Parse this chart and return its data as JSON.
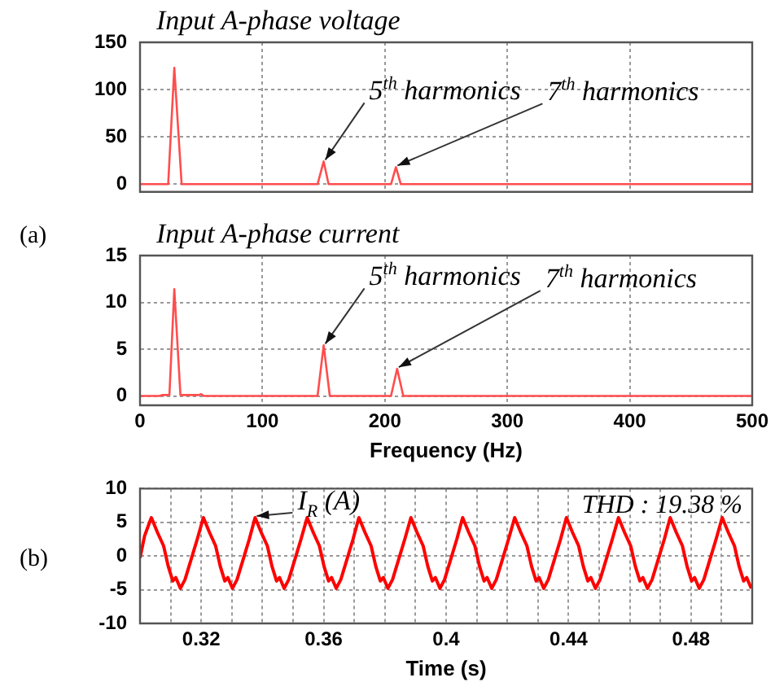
{
  "chart_data": [
    {
      "type": "line",
      "title": "Input A-phase voltage",
      "xlim": [
        0,
        500
      ],
      "xticks": [
        0,
        100,
        200,
        300,
        400,
        500
      ],
      "ylim": [
        -8,
        150
      ],
      "yticks": [
        0,
        50,
        100,
        150
      ],
      "tick_labels": "y",
      "grid": true,
      "series": [
        {
          "color": "#ff4d4d",
          "x": [
            0,
            23,
            28,
            34,
            145,
            150,
            154,
            205,
            209,
            213,
            500
          ],
          "values": [
            0,
            0,
            123,
            0,
            0,
            24,
            0,
            0,
            18,
            0,
            0
          ]
        }
      ],
      "annotations": [
        {
          "text": "5$^{th}$ harmonics",
          "x": 150,
          "y": 24
        },
        {
          "text": "7$^{th}$ harmonics",
          "x": 209,
          "y": 18
        }
      ]
    },
    {
      "type": "line",
      "title": "Input A-phase current",
      "xlabel": "Frequency (Hz)",
      "xlim": [
        0,
        500
      ],
      "xticks": [
        0,
        100,
        200,
        300,
        400,
        500
      ],
      "ylim": [
        -1,
        15
      ],
      "yticks": [
        0,
        5,
        10,
        15
      ],
      "grid": true,
      "series": [
        {
          "color": "#ff4d4d",
          "x": [
            0,
            16,
            18,
            24,
            28,
            33,
            48,
            50,
            52,
            145,
            150,
            155,
            205,
            210,
            215,
            500
          ],
          "values": [
            0,
            0,
            0.1,
            0.1,
            11.4,
            0.1,
            0.1,
            0.2,
            0,
            0,
            5.4,
            0,
            0,
            2.9,
            0,
            0
          ]
        }
      ],
      "annotations": [
        {
          "text": "5$^{th}$ harmonics",
          "x": 150,
          "y": 5.4
        },
        {
          "text": "7$^{th}$ harmonics",
          "x": 210,
          "y": 2.9
        },
        "(a)"
      ]
    },
    {
      "type": "line",
      "xlabel": "Time (s)",
      "xlim": [
        0.3,
        0.5
      ],
      "xticks": [
        {
          "value": 0.31,
          "label": null
        },
        0.32,
        {
          "value": 0.33,
          "label": null
        },
        {
          "value": 0.34,
          "label": null
        },
        {
          "value": 0.35,
          "label": null
        },
        0.36,
        {
          "value": 0.37,
          "label": null
        },
        {
          "value": 0.38,
          "label": null
        },
        {
          "value": 0.39,
          "label": null
        },
        0.4,
        {
          "value": 0.41,
          "label": null
        },
        {
          "value": 0.42,
          "label": null
        },
        {
          "value": 0.43,
          "label": null
        },
        0.44,
        {
          "value": 0.45,
          "label": null
        },
        {
          "value": 0.46,
          "label": null
        },
        {
          "value": 0.47,
          "label": null
        },
        0.48,
        {
          "value": 0.49,
          "label": null
        }
      ],
      "ylim": [
        -10,
        10
      ],
      "yticks": [
        -10,
        -5,
        0,
        5,
        10
      ],
      "grid": true,
      "series": [
        {
          "color": "#ff0000",
          "x": [
            0.3,
            0.3015,
            0.3037,
            0.3057,
            0.3077,
            0.3092,
            0.3107,
            0.3117,
            0.3132,
            0.3147,
            0.3167,
            0.3187,
            0.3207,
            0.3227,
            0.3247,
            0.3262,
            0.3277,
            0.3287,
            0.3302,
            0.3317,
            0.3337,
            0.3357,
            0.3376,
            0.3396,
            0.3416,
            0.3431,
            0.3446,
            0.3456,
            0.3471,
            0.3486,
            0.3506,
            0.3526,
            0.3546,
            0.3566,
            0.3586,
            0.3601,
            0.3616,
            0.3626,
            0.3641,
            0.3656,
            0.3676,
            0.3696,
            0.3715,
            0.3735,
            0.3755,
            0.377,
            0.3785,
            0.3795,
            0.381,
            0.3825,
            0.3845,
            0.3865,
            0.3885,
            0.3905,
            0.3925,
            0.394,
            0.3955,
            0.3965,
            0.398,
            0.3995,
            0.4015,
            0.4035,
            0.4054,
            0.4074,
            0.4094,
            0.4109,
            0.4124,
            0.4134,
            0.4149,
            0.4164,
            0.4184,
            0.4204,
            0.4224,
            0.4244,
            0.4264,
            0.4279,
            0.4294,
            0.4304,
            0.4319,
            0.4334,
            0.4354,
            0.4374,
            0.4393,
            0.4413,
            0.4433,
            0.4448,
            0.4463,
            0.4473,
            0.4488,
            0.4503,
            0.4523,
            0.4543,
            0.4563,
            0.4583,
            0.4603,
            0.4618,
            0.4633,
            0.4643,
            0.4658,
            0.4673,
            0.4693,
            0.4713,
            0.4732,
            0.4752,
            0.4772,
            0.4787,
            0.4802,
            0.4812,
            0.4827,
            0.4842,
            0.4862,
            0.4882,
            0.4902,
            0.4922,
            0.4942,
            0.4957,
            0.4972,
            0.4982,
            0.4997
          ],
          "values": [
            -0.3,
            3,
            5.7,
            3.5,
            1.5,
            -1.5,
            -3.7,
            -3.2,
            -4.8,
            -3.5,
            -0.5,
            2.5,
            5.7,
            3.5,
            1.5,
            -1.5,
            -3.7,
            -3.2,
            -4.8,
            -3.5,
            -0.5,
            2.5,
            5.7,
            3.5,
            1.5,
            -1.5,
            -3.7,
            -3.2,
            -4.8,
            -3.5,
            -0.5,
            2.5,
            5.7,
            3.5,
            1.5,
            -1.5,
            -3.7,
            -3.2,
            -4.8,
            -3.5,
            -0.5,
            2.5,
            5.7,
            3.5,
            1.5,
            -1.5,
            -3.7,
            -3.2,
            -4.8,
            -3.5,
            -0.5,
            2.5,
            5.7,
            3.5,
            1.5,
            -1.5,
            -3.7,
            -3.2,
            -4.8,
            -3.5,
            -0.5,
            2.5,
            5.7,
            3.5,
            1.5,
            -1.5,
            -3.7,
            -3.2,
            -4.8,
            -3.5,
            -0.5,
            2.5,
            5.7,
            3.5,
            1.5,
            -1.5,
            -3.7,
            -3.2,
            -4.8,
            -3.5,
            -0.5,
            2.5,
            5.7,
            3.5,
            1.5,
            -1.5,
            -3.7,
            -3.2,
            -4.8,
            -3.5,
            -0.5,
            2.5,
            5.7,
            3.5,
            1.5,
            -1.5,
            -3.7,
            -3.2,
            -4.8,
            -3.5,
            -0.5,
            2.5,
            5.7,
            3.5,
            1.5,
            -1.5,
            -3.7,
            -3.2,
            -4.8,
            -3.5,
            -0.5,
            2.5,
            5.7,
            3.5,
            1.5,
            -1.5,
            -3.7,
            -3.2,
            -4.8
          ]
        }
      ],
      "annotations": [
        {
          "text": "I$_{R}$ (A)",
          "x": 0.3376,
          "y": 5.7
        },
        "THD : 19.38 %",
        "(b)"
      ]
    }
  ]
}
